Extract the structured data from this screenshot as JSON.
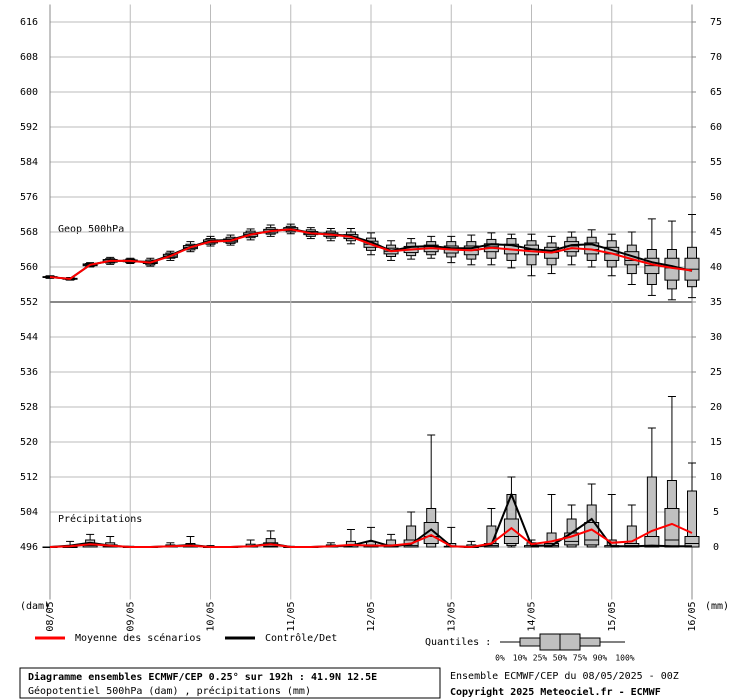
{
  "chart_data": {
    "type": "ensemble-boxplot",
    "title": "Diagramme ensembles ECMWF/CEP 0.25° sur 192h : 41.9N 12.5E",
    "subtitle": "Géopotentiel 500hPa (dam) , précipitations (mm)",
    "run_label": "Ensemble ECMWF/CEP du 08/05/2025 - 00Z",
    "copyright": "Copyright 2025 Meteociel.fr - ECMWF",
    "y_label": "(dam)",
    "y2_label": "(mm)",
    "grid": true,
    "box_color": "#c0c0c0",
    "x": [
      0,
      0.25,
      0.5,
      0.75,
      1,
      1.25,
      1.5,
      1.75,
      2,
      2.25,
      2.5,
      2.75,
      3,
      3.25,
      3.5,
      3.75,
      4,
      4.25,
      4.5,
      4.75,
      5,
      5.25,
      5.5,
      5.75,
      6,
      6.25,
      6.5,
      6.75,
      7,
      7.25,
      7.5,
      7.75,
      8
    ],
    "xlim": [
      0,
      8
    ],
    "xticks": [
      {
        "value": 0,
        "label": "08/05"
      },
      {
        "value": 1,
        "label": "09/05"
      },
      {
        "value": 2,
        "label": "10/05"
      },
      {
        "value": 3,
        "label": "11/05"
      },
      {
        "value": 4,
        "label": "12/05"
      },
      {
        "value": 5,
        "label": "13/05"
      },
      {
        "value": 6,
        "label": "14/05"
      },
      {
        "value": 7,
        "label": "15/05"
      },
      {
        "value": 8,
        "label": "16/05"
      }
    ],
    "ylim": [
      484,
      620
    ],
    "yticks": [
      496,
      504,
      512,
      520,
      528,
      536,
      544,
      552,
      560,
      568,
      576,
      584,
      592,
      600,
      608,
      616
    ],
    "y2lim": [
      -7.5,
      77.5
    ],
    "y2ticks": [
      0,
      5,
      10,
      15,
      20,
      25,
      30,
      35,
      40,
      45,
      50,
      55,
      60,
      65,
      70,
      75
    ],
    "legend": [
      {
        "name": "Moyenne des scénarios",
        "color": "#ff0000"
      },
      {
        "name": "Contrôle/Det",
        "color": "#000000"
      }
    ],
    "quantiles_title": "Quantiles :",
    "quantile_labels": [
      "0%",
      "10%",
      "25%",
      "50%",
      "75%",
      "90%",
      "100%"
    ],
    "geopotential": {
      "label": "Geop 500hPa",
      "mean": [
        557.7,
        557.3,
        560.5,
        561.4,
        561.4,
        561.0,
        562.5,
        564.5,
        565.8,
        566.0,
        567.4,
        568.2,
        568.6,
        567.7,
        567.4,
        566.9,
        565.2,
        563.6,
        564.0,
        564.3,
        564.0,
        563.8,
        564.4,
        564.0,
        563.6,
        563.3,
        564.3,
        564.0,
        563.1,
        561.8,
        560.6,
        559.8,
        559.2
      ],
      "control": [
        557.7,
        557.3,
        560.5,
        561.4,
        561.4,
        561.1,
        562.7,
        564.6,
        566.0,
        566.2,
        567.5,
        568.2,
        568.7,
        567.8,
        567.5,
        567.1,
        565.7,
        563.7,
        564.6,
        564.8,
        564.3,
        564.3,
        565.2,
        565.0,
        564.1,
        563.7,
        565.0,
        565.2,
        563.9,
        562.5,
        561.1,
        560.2,
        559.1
      ],
      "quantiles": [
        [
          557.4,
          557.5,
          557.6,
          557.7,
          557.8,
          557.9,
          558.0
        ],
        [
          557.0,
          557.1,
          557.2,
          557.3,
          557.4,
          557.5,
          557.6
        ],
        [
          560.0,
          560.2,
          560.3,
          560.5,
          560.7,
          560.8,
          561.0
        ],
        [
          560.6,
          560.9,
          561.1,
          561.4,
          561.7,
          561.9,
          562.2
        ],
        [
          560.8,
          561.0,
          561.2,
          561.4,
          561.6,
          561.8,
          562.0
        ],
        [
          560.2,
          560.5,
          560.8,
          561.0,
          561.3,
          561.6,
          562.0
        ],
        [
          561.5,
          562.0,
          562.2,
          562.5,
          562.9,
          563.2,
          563.6
        ],
        [
          563.5,
          563.9,
          564.2,
          564.5,
          564.9,
          565.2,
          565.8
        ],
        [
          564.8,
          565.2,
          565.5,
          565.8,
          566.2,
          566.5,
          567.0
        ],
        [
          565.0,
          565.4,
          565.7,
          566.0,
          566.4,
          566.8,
          567.3
        ],
        [
          566.2,
          566.7,
          567.0,
          567.4,
          567.8,
          568.2,
          568.7
        ],
        [
          567.0,
          567.5,
          567.8,
          568.2,
          568.6,
          569.0,
          569.6
        ],
        [
          567.6,
          568.0,
          568.3,
          568.6,
          569.0,
          569.3,
          569.8
        ],
        [
          566.5,
          567.0,
          567.4,
          567.7,
          568.1,
          568.5,
          569.0
        ],
        [
          566.0,
          566.6,
          567.0,
          567.4,
          567.8,
          568.2,
          568.8
        ],
        [
          565.3,
          566.0,
          566.5,
          566.9,
          567.4,
          568.0,
          568.8
        ],
        [
          562.8,
          563.8,
          564.5,
          565.2,
          565.9,
          566.6,
          567.8
        ],
        [
          561.5,
          562.4,
          563.0,
          563.6,
          564.3,
          565.0,
          566.0
        ],
        [
          561.8,
          562.6,
          563.3,
          564.0,
          564.7,
          565.5,
          566.5
        ],
        [
          562.0,
          562.8,
          563.5,
          564.3,
          565.0,
          565.8,
          567.0
        ],
        [
          561.0,
          562.3,
          563.2,
          564.0,
          564.8,
          565.8,
          567.0
        ],
        [
          560.5,
          561.8,
          562.8,
          563.8,
          564.8,
          565.8,
          567.3
        ],
        [
          560.5,
          562.0,
          563.5,
          564.6,
          565.3,
          566.3,
          567.8
        ],
        [
          559.8,
          561.5,
          563.0,
          564.0,
          565.2,
          566.5,
          567.5
        ],
        [
          558.0,
          560.5,
          562.8,
          564.0,
          565.0,
          566.0,
          567.5
        ],
        [
          558.5,
          560.5,
          562.0,
          563.3,
          564.5,
          565.5,
          567.0
        ],
        [
          560.5,
          562.5,
          563.5,
          564.8,
          565.8,
          566.8,
          568.0
        ],
        [
          560.0,
          561.5,
          563.0,
          564.0,
          565.5,
          566.8,
          568.5
        ],
        [
          558.0,
          560.0,
          561.5,
          563.0,
          564.5,
          566.0,
          567.5
        ],
        [
          556.0,
          558.5,
          560.5,
          561.5,
          563.5,
          565.0,
          568.0
        ],
        [
          553.5,
          556.0,
          558.5,
          560.3,
          562.0,
          564.0,
          571.0
        ],
        [
          552.5,
          555.0,
          557.0,
          559.8,
          562.0,
          564.0,
          570.5
        ],
        [
          553.0,
          555.5,
          557.0,
          559.5,
          562.0,
          564.5,
          572.0
        ]
      ]
    },
    "precipitation": {
      "label": "Précipitations",
      "axis": "y2",
      "mean": [
        0,
        0.1,
        0.4,
        0.2,
        0,
        0,
        0.1,
        0.2,
        0,
        0,
        0.1,
        0.4,
        0,
        0,
        0.1,
        0.3,
        0.2,
        0.2,
        0.5,
        1.7,
        0.1,
        0,
        0.5,
        2.7,
        0.4,
        0.8,
        1.5,
        2.5,
        0.6,
        0.8,
        2.3,
        3.3,
        2.0
      ],
      "control": [
        0,
        0.2,
        0.6,
        0.2,
        0,
        0,
        0.1,
        0.3,
        0,
        0,
        0.1,
        0.5,
        0,
        0,
        0.1,
        0.2,
        0.9,
        0.1,
        0.4,
        2.5,
        0.1,
        0,
        0.3,
        7.5,
        0.2,
        0.2,
        2.0,
        4.0,
        0.1,
        0.1,
        0.2,
        0.1,
        0.1
      ],
      "quantiles": [
        [
          0,
          0,
          0,
          0,
          0,
          0,
          0
        ],
        [
          0,
          0,
          0,
          0,
          0,
          0.2,
          0.8
        ],
        [
          0,
          0,
          0,
          0.2,
          0.5,
          1.0,
          1.8
        ],
        [
          0,
          0,
          0,
          0.1,
          0.3,
          0.6,
          1.5
        ],
        [
          0,
          0,
          0,
          0,
          0,
          0,
          0.1
        ],
        [
          0,
          0,
          0,
          0,
          0,
          0,
          0
        ],
        [
          0,
          0,
          0,
          0,
          0.1,
          0.3,
          0.6
        ],
        [
          0,
          0,
          0,
          0,
          0.2,
          0.5,
          1.5
        ],
        [
          0,
          0,
          0,
          0,
          0,
          0,
          0.2
        ],
        [
          0,
          0,
          0,
          0,
          0,
          0,
          0
        ],
        [
          0,
          0,
          0,
          0,
          0.1,
          0.4,
          1.0
        ],
        [
          0,
          0,
          0,
          0.1,
          0.6,
          1.2,
          2.3
        ],
        [
          0,
          0,
          0,
          0,
          0,
          0,
          0.1
        ],
        [
          0,
          0,
          0,
          0,
          0,
          0,
          0
        ],
        [
          0,
          0,
          0,
          0,
          0.1,
          0.3,
          0.6
        ],
        [
          0,
          0,
          0,
          0,
          0.2,
          0.8,
          2.5
        ],
        [
          0,
          0,
          0,
          0,
          0.3,
          0.8,
          2.8
        ],
        [
          0,
          0,
          0,
          0,
          0.3,
          1.0,
          1.8
        ],
        [
          0,
          0,
          0,
          0.2,
          1.0,
          3.0,
          5.0
        ],
        [
          0,
          0,
          0.5,
          1.5,
          3.5,
          5.5,
          16.0
        ],
        [
          0,
          0,
          0,
          0,
          0.1,
          0.5,
          2.8
        ],
        [
          0,
          0,
          0,
          0,
          0,
          0.3,
          0.8
        ],
        [
          0,
          0,
          0,
          0.2,
          0.5,
          3.0,
          5.5
        ],
        [
          0,
          0.2,
          0.5,
          1.5,
          4.0,
          7.5,
          10.0
        ],
        [
          0,
          0,
          0,
          0,
          0.2,
          0.6,
          1.0
        ],
        [
          0,
          0,
          0,
          0.2,
          0.5,
          2.0,
          7.5
        ],
        [
          0,
          0,
          0.3,
          0.8,
          2.0,
          4.0,
          6.0
        ],
        [
          0,
          0,
          0.3,
          1.0,
          3.5,
          6.0,
          9.0
        ],
        [
          0,
          0,
          0,
          0,
          0.2,
          1.0,
          7.5
        ],
        [
          0,
          0,
          0,
          0.2,
          0.5,
          3.0,
          6.0
        ],
        [
          0,
          0,
          0,
          0.2,
          1.5,
          10.0,
          17.0
        ],
        [
          0,
          0,
          0,
          1.0,
          5.5,
          9.5,
          21.5
        ],
        [
          0,
          0,
          0,
          0.5,
          1.5,
          8.0,
          12.0
        ]
      ]
    }
  }
}
